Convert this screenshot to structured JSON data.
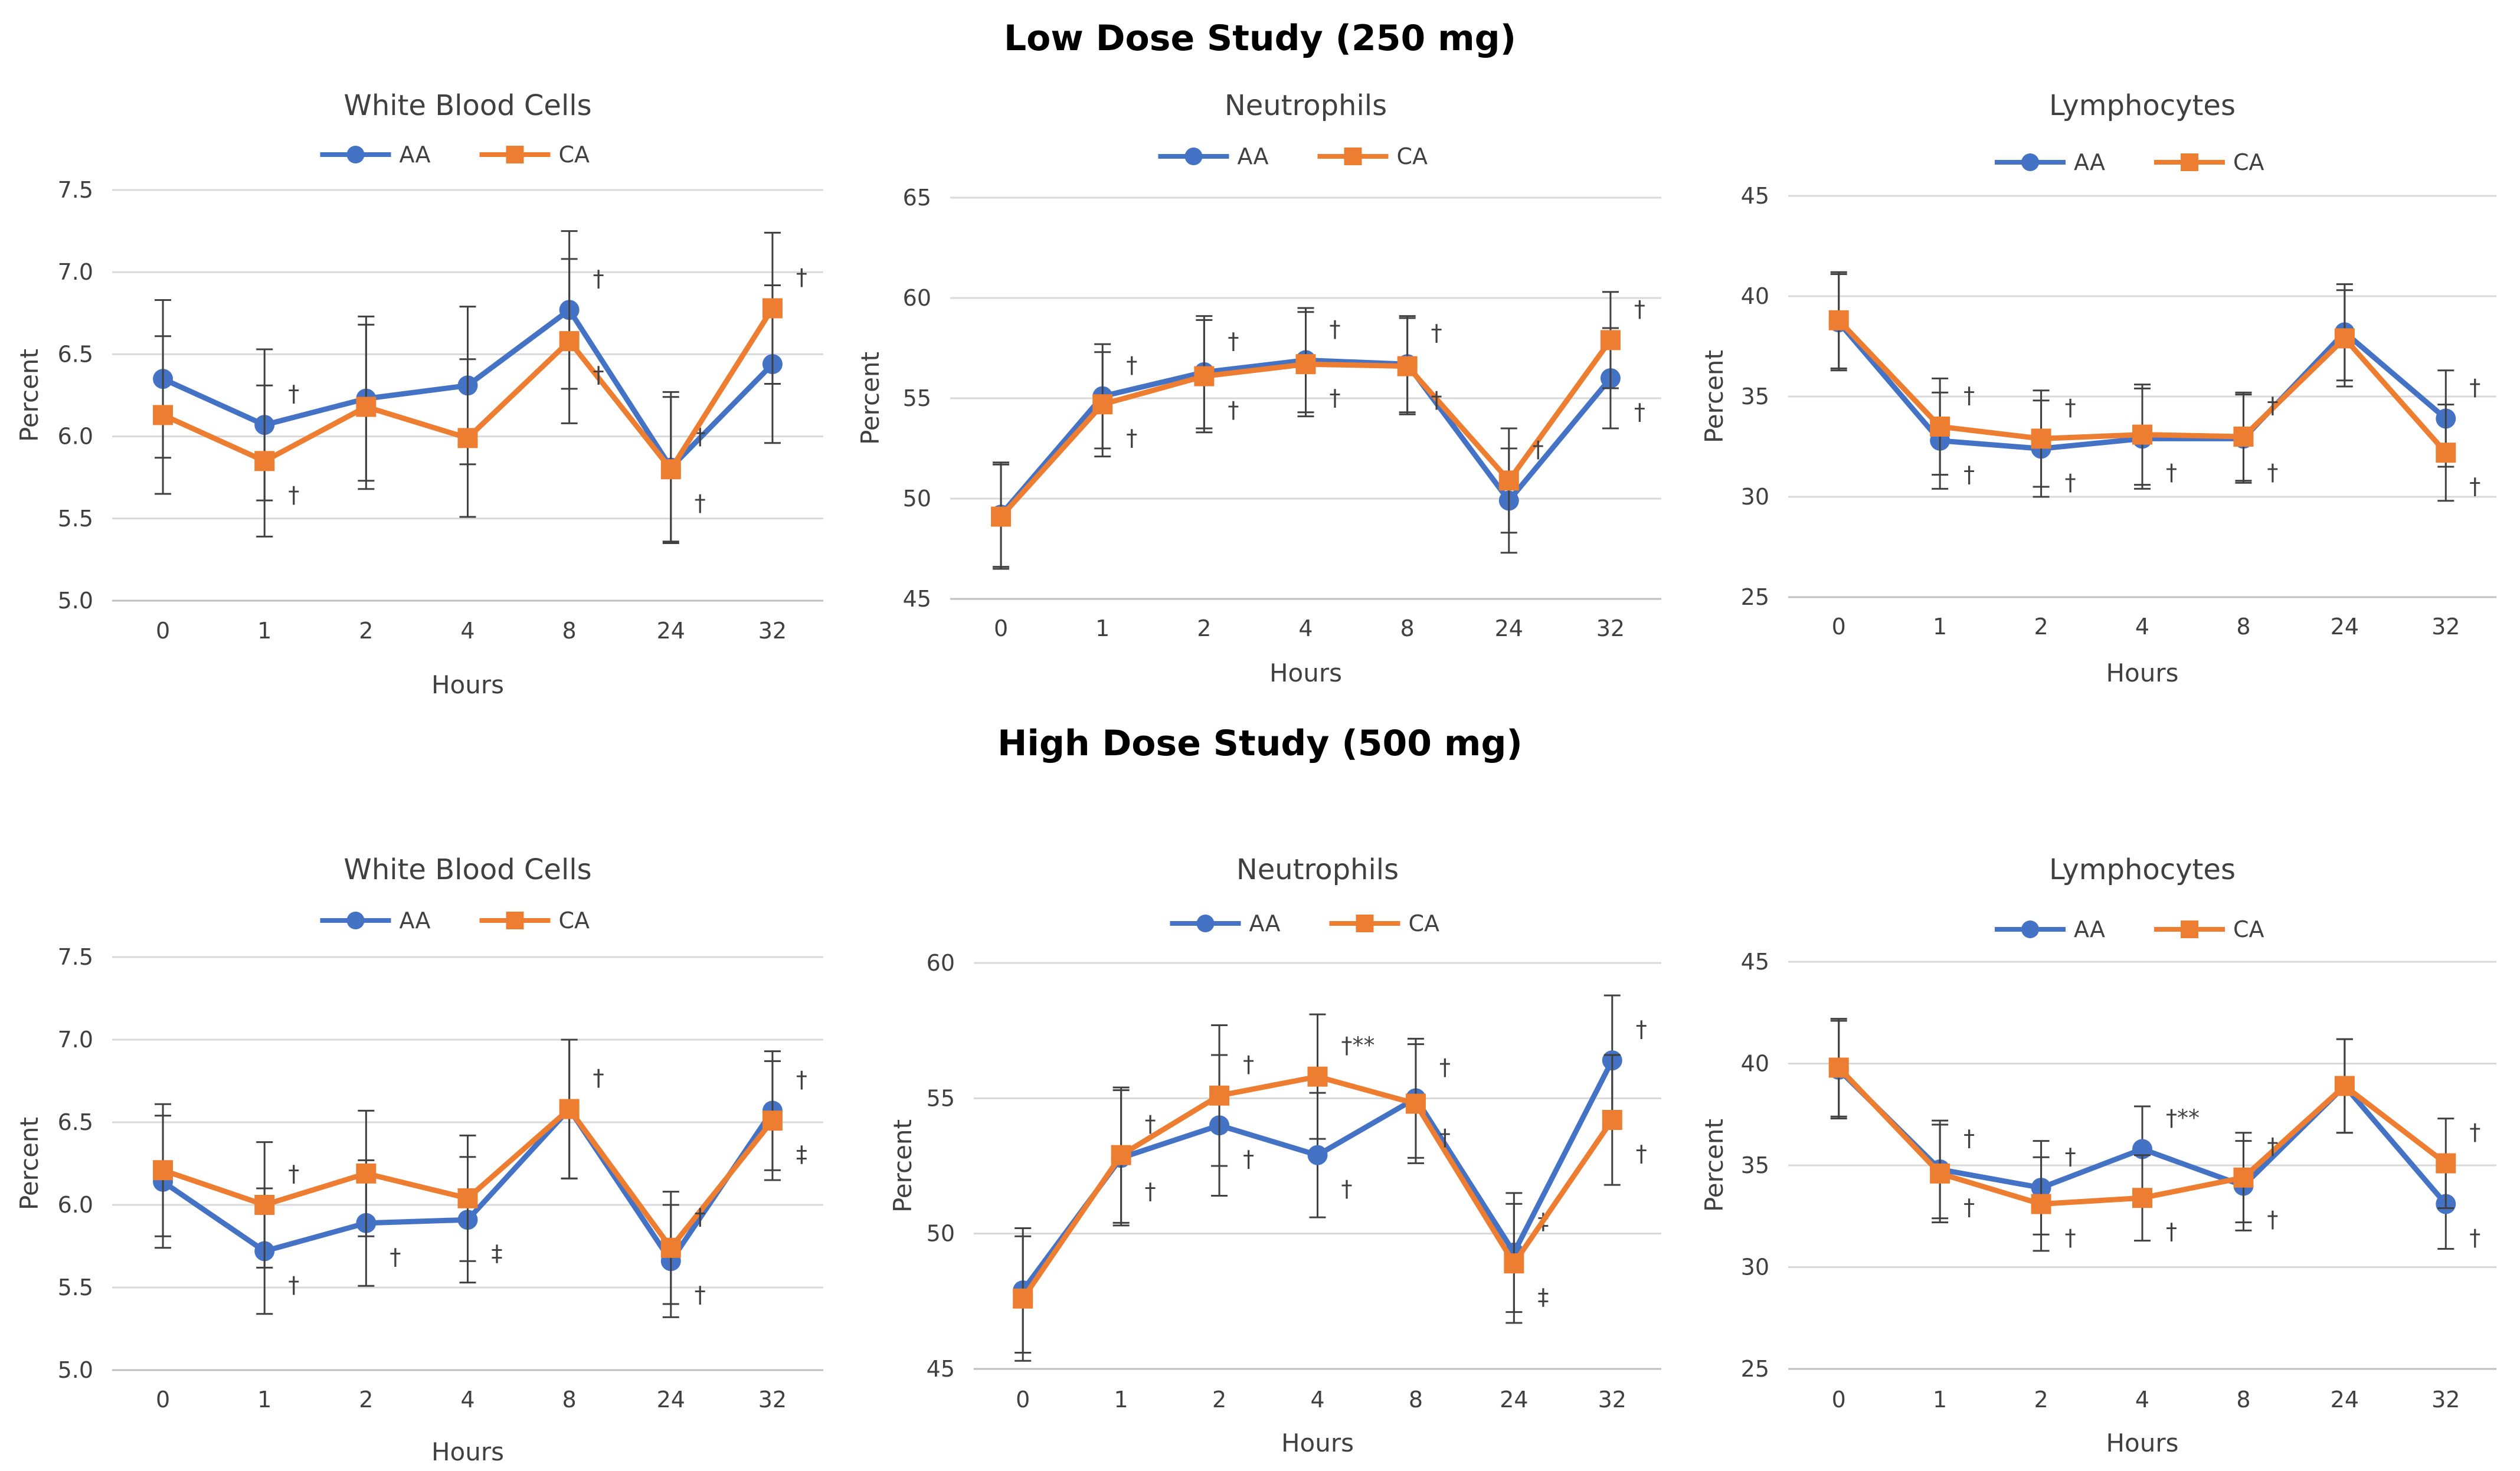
{
  "studies": [
    {
      "title": "Low Dose Study (250 mg)"
    },
    {
      "title": "High Dose Study (500 mg)"
    }
  ],
  "colors": {
    "AA": "#4472C4",
    "CA": "#ED7D31",
    "grid": "#D9D9D9",
    "error": "#404040"
  },
  "chart_data": [
    {
      "type": "line",
      "study": "Low Dose Study (250 mg)",
      "title": "White Blood Cells",
      "xlabel": "Hours",
      "ylabel": "Percent",
      "categories": [
        "0",
        "1",
        "2",
        "4",
        "8",
        "24",
        "32"
      ],
      "ylim": [
        5.0,
        7.5
      ],
      "yticks": [
        "5.0",
        "5.5",
        "6.0",
        "6.5",
        "7.0",
        "7.5"
      ],
      "legend": [
        "AA",
        "CA"
      ],
      "legend_position": "top-center",
      "series": [
        {
          "name": "AA",
          "values": [
            6.35,
            6.07,
            6.23,
            6.31,
            6.77,
            5.81,
            6.44
          ],
          "error": [
            0.48,
            0.46,
            0.5,
            0.48,
            0.48,
            0.46,
            0.48
          ],
          "markers": [
            "",
            "†",
            "",
            "",
            "†",
            "†",
            ""
          ]
        },
        {
          "name": "CA",
          "values": [
            6.13,
            5.85,
            6.18,
            5.99,
            6.58,
            5.8,
            6.78
          ],
          "error": [
            0.48,
            0.46,
            0.5,
            0.48,
            0.5,
            0.44,
            0.46
          ],
          "markers": [
            "",
            "†",
            "",
            "",
            "†",
            "†",
            "†"
          ]
        }
      ]
    },
    {
      "type": "line",
      "study": "Low Dose Study (250 mg)",
      "title": "Neutrophils",
      "xlabel": "Hours",
      "ylabel": "Percent",
      "categories": [
        "0",
        "1",
        "2",
        "4",
        "8",
        "24",
        "32"
      ],
      "ylim": [
        45,
        65
      ],
      "yticks": [
        "45",
        "50",
        "55",
        "60",
        "65"
      ],
      "legend": [
        "AA",
        "CA"
      ],
      "legend_position": "top-center",
      "series": [
        {
          "name": "AA",
          "values": [
            49.2,
            55.1,
            56.3,
            56.9,
            56.7,
            49.9,
            56.0
          ],
          "error": [
            2.6,
            2.6,
            2.8,
            2.6,
            2.4,
            2.6,
            2.5
          ],
          "markers": [
            "",
            "†",
            "†",
            "†",
            "†",
            "",
            "†"
          ]
        },
        {
          "name": "CA",
          "values": [
            49.1,
            54.7,
            56.1,
            56.7,
            56.6,
            50.9,
            57.9
          ],
          "error": [
            2.6,
            2.6,
            2.8,
            2.6,
            2.4,
            2.6,
            2.4
          ],
          "markers": [
            "",
            "†",
            "†",
            "†",
            "†",
            "†",
            "†"
          ]
        }
      ]
    },
    {
      "type": "line",
      "study": "Low Dose Study (250 mg)",
      "title": "Lymphocytes",
      "xlabel": "Hours",
      "ylabel": "Percent",
      "categories": [
        "0",
        "1",
        "2",
        "4",
        "8",
        "24",
        "32"
      ],
      "ylim": [
        25,
        45
      ],
      "yticks": [
        "25",
        "30",
        "35",
        "40",
        "45"
      ],
      "legend": [
        "AA",
        "CA"
      ],
      "legend_position": "top-center",
      "series": [
        {
          "name": "AA",
          "values": [
            38.7,
            32.8,
            32.4,
            32.9,
            32.9,
            38.2,
            33.9
          ],
          "error": [
            2.4,
            2.4,
            2.4,
            2.5,
            2.2,
            2.4,
            2.4
          ],
          "markers": [
            "",
            "†",
            "†",
            "†",
            "†",
            "",
            "†"
          ]
        },
        {
          "name": "CA",
          "values": [
            38.8,
            33.5,
            32.9,
            33.1,
            33.0,
            37.9,
            32.2
          ],
          "error": [
            2.4,
            2.4,
            2.4,
            2.5,
            2.2,
            2.4,
            2.4
          ],
          "markers": [
            "",
            "†",
            "†",
            "",
            "†",
            "",
            "†"
          ]
        }
      ]
    },
    {
      "type": "line",
      "study": "High Dose Study (500 mg)",
      "title": "White Blood Cells",
      "xlabel": "Hours",
      "ylabel": "Percent",
      "categories": [
        "0",
        "1",
        "2",
        "4",
        "8",
        "24",
        "32"
      ],
      "ylim": [
        5.0,
        7.5
      ],
      "yticks": [
        "5.0",
        "5.5",
        "6.0",
        "6.5",
        "7.0",
        "7.5"
      ],
      "legend": [
        "AA",
        "CA"
      ],
      "legend_position": "top-center",
      "series": [
        {
          "name": "AA",
          "values": [
            6.14,
            5.72,
            5.89,
            5.91,
            6.58,
            5.66,
            6.57
          ],
          "error": [
            0.4,
            0.38,
            0.38,
            0.38,
            0.42,
            0.34,
            0.36
          ],
          "markers": [
            "",
            "†",
            "†",
            "‡",
            "†",
            "†",
            "†"
          ]
        },
        {
          "name": "CA",
          "values": [
            6.21,
            6.0,
            6.19,
            6.04,
            6.58,
            5.74,
            6.51
          ],
          "error": [
            0.4,
            0.38,
            0.38,
            0.38,
            0.42,
            0.34,
            0.36
          ],
          "markers": [
            "",
            "†",
            "",
            "",
            "†",
            "†",
            "‡"
          ]
        }
      ]
    },
    {
      "type": "line",
      "study": "High Dose Study (500 mg)",
      "title": "Neutrophils",
      "xlabel": "Hours",
      "ylabel": "Percent",
      "categories": [
        "0",
        "1",
        "2",
        "4",
        "8",
        "24",
        "32"
      ],
      "ylim": [
        45,
        60
      ],
      "yticks": [
        "45",
        "50",
        "55",
        "60"
      ],
      "legend": [
        "AA",
        "CA"
      ],
      "legend_position": "top-center",
      "series": [
        {
          "name": "AA",
          "values": [
            47.9,
            52.8,
            54.0,
            52.9,
            55.0,
            49.3,
            56.4
          ],
          "error": [
            2.3,
            2.5,
            2.6,
            2.3,
            2.2,
            2.2,
            2.4
          ],
          "markers": [
            "",
            "†",
            "†",
            "†",
            "†",
            "‡",
            "†"
          ]
        },
        {
          "name": "CA",
          "values": [
            47.6,
            52.9,
            55.1,
            55.8,
            54.8,
            48.9,
            54.2
          ],
          "error": [
            2.3,
            2.5,
            2.6,
            2.3,
            2.2,
            2.2,
            2.4
          ],
          "markers": [
            "",
            "†",
            "†",
            "†**",
            "†",
            "‡",
            "†"
          ]
        }
      ]
    },
    {
      "type": "line",
      "study": "High Dose Study (500 mg)",
      "title": "Lymphocytes",
      "xlabel": "Hours",
      "ylabel": "Percent",
      "categories": [
        "0",
        "1",
        "2",
        "4",
        "8",
        "24",
        "32"
      ],
      "ylim": [
        25,
        45
      ],
      "yticks": [
        "25",
        "30",
        "35",
        "40",
        "45"
      ],
      "legend": [
        "AA",
        "CA"
      ],
      "legend_position": "top-center",
      "series": [
        {
          "name": "AA",
          "values": [
            39.7,
            34.8,
            33.9,
            35.8,
            34.0,
            38.9,
            33.1
          ],
          "error": [
            2.4,
            2.4,
            2.3,
            2.1,
            2.2,
            2.3,
            2.2
          ],
          "markers": [
            "",
            "†",
            "†",
            "†**",
            "†",
            "",
            "†"
          ]
        },
        {
          "name": "CA",
          "values": [
            39.8,
            34.6,
            33.1,
            33.4,
            34.4,
            38.9,
            35.1
          ],
          "error": [
            2.4,
            2.4,
            2.3,
            2.1,
            2.2,
            2.3,
            2.2
          ],
          "markers": [
            "",
            "†",
            "†",
            "†",
            "†",
            "",
            "†"
          ]
        }
      ]
    }
  ]
}
